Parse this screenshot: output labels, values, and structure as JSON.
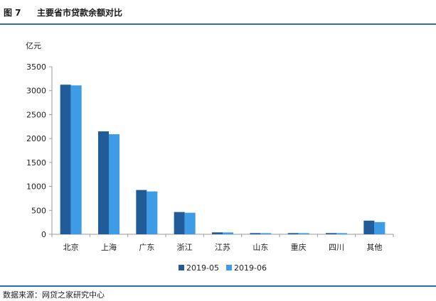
{
  "figure": {
    "label": "图 7",
    "title": "主要省市贷款余额对比"
  },
  "source": "数据来源：网贷之家研究中心",
  "colors": {
    "series1": "#1f5c99",
    "series2": "#3e9be6",
    "rule": "#2a6fb0",
    "axis": "#9a9a9a"
  },
  "chart_data": {
    "type": "bar",
    "title": "主要省市贷款余额对比",
    "ylabel": "亿元",
    "xlabel": "",
    "categories": [
      "北京",
      "上海",
      "广东",
      "浙江",
      "江苏",
      "山东",
      "重庆",
      "四川",
      "其他"
    ],
    "series": [
      {
        "name": "2019-05",
        "values": [
          3125,
          2150,
          925,
          465,
          40,
          25,
          25,
          25,
          285
        ]
      },
      {
        "name": "2019-06",
        "values": [
          3110,
          2090,
          895,
          450,
          38,
          24,
          24,
          24,
          255
        ]
      }
    ],
    "ylim": [
      0,
      3500
    ],
    "yticks": [
      0,
      500,
      1000,
      1500,
      2000,
      2500,
      3000,
      3500
    ],
    "grid": false,
    "legend": "bottom"
  }
}
